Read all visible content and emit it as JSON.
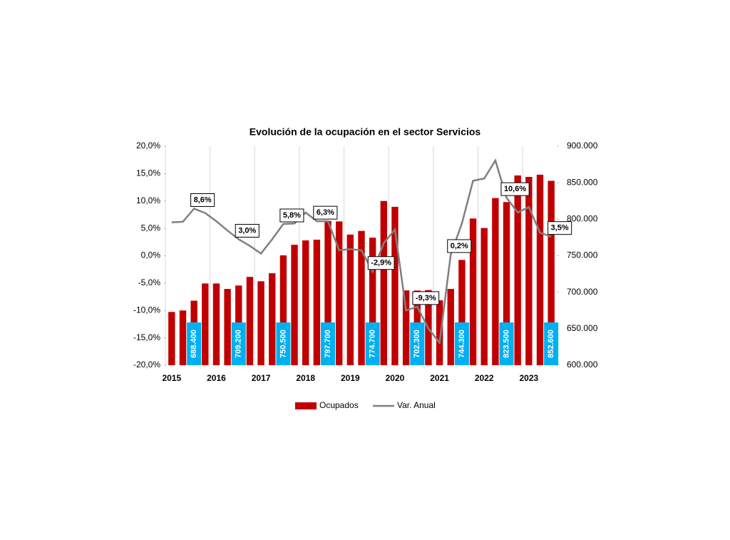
{
  "chart_data": {
    "type": "bar-line",
    "title": "Evolución de la ocupación en el sector Servicios",
    "categories": [
      "2015",
      null,
      null,
      null,
      "2016",
      null,
      null,
      null,
      "2017",
      null,
      null,
      null,
      "2018",
      null,
      null,
      null,
      "2019",
      null,
      null,
      null,
      "2020",
      null,
      null,
      null,
      "2021",
      null,
      null,
      null,
      "2022",
      null,
      null,
      null,
      "2023",
      null,
      null
    ],
    "series": [
      {
        "name": "Ocupados",
        "type": "bar",
        "axis": "y2",
        "color": "#c00000",
        "values": [
          673000,
          675000,
          688400,
          712000,
          712000,
          704500,
          709200,
          721000,
          715000,
          726000,
          750500,
          765000,
          771000,
          772000,
          797700,
          797000,
          779000,
          784000,
          774700,
          825000,
          817000,
          702500,
          702300,
          703000,
          689000,
          704500,
          744300,
          801000,
          788000,
          829000,
          823500,
          860000,
          858000,
          861000,
          852600
        ],
        "value_labels": [
          null,
          null,
          "688.400",
          null,
          null,
          null,
          "709.200",
          null,
          null,
          null,
          "750.500",
          null,
          null,
          null,
          "797.700",
          null,
          null,
          null,
          "774.700",
          null,
          null,
          null,
          "702.300",
          null,
          null,
          null,
          "744.300",
          null,
          null,
          null,
          "823.500",
          null,
          null,
          null,
          "852.600"
        ]
      },
      {
        "name": "Var. Anual",
        "type": "line",
        "axis": "y",
        "color": "#808080",
        "values": [
          6.1,
          6.2,
          8.6,
          7.8,
          6.3,
          4.6,
          3.0,
          1.8,
          0.4,
          3.0,
          5.8,
          5.9,
          7.9,
          6.3,
          6.3,
          1.0,
          1.2,
          1.0,
          -2.9,
          2.3,
          4.8,
          -10.0,
          -9.3,
          -13.3,
          -15.9,
          0.2,
          5.9,
          13.7,
          14.1,
          17.4,
          10.6,
          7.9,
          8.9,
          4.2,
          3.5
        ],
        "value_labels": [
          null,
          null,
          "8,6%",
          null,
          null,
          null,
          "3,0%",
          null,
          null,
          null,
          "5,8%",
          null,
          null,
          "6,3%",
          null,
          null,
          null,
          null,
          "-2,9%",
          null,
          null,
          null,
          "-9,3%",
          null,
          null,
          "0,2%",
          null,
          null,
          null,
          null,
          "10,6%",
          null,
          null,
          null,
          "3,5%"
        ]
      }
    ],
    "ylim": [
      -20,
      20
    ],
    "yticks": [
      {
        "value": -20,
        "label": "-20,0%"
      },
      {
        "value": -15,
        "label": "-15,0%"
      },
      {
        "value": -10,
        "label": "-10,0%"
      },
      {
        "value": -5,
        "label": "-5,0%"
      },
      {
        "value": 0,
        "label": "0,0%"
      },
      {
        "value": 5,
        "label": "5,0%"
      },
      {
        "value": 10,
        "label": "10,0%"
      },
      {
        "value": 15,
        "label": "15,0%"
      },
      {
        "value": 20,
        "label": "20,0%"
      }
    ],
    "y2lim": [
      600000,
      900000
    ],
    "y2ticks": [
      {
        "value": 600000,
        "label": "600.000"
      },
      {
        "value": 650000,
        "label": "650.000"
      },
      {
        "value": 700000,
        "label": "700.000"
      },
      {
        "value": 750000,
        "label": "750.000"
      },
      {
        "value": 800000,
        "label": "800.000"
      },
      {
        "value": 850000,
        "label": "850.000"
      },
      {
        "value": 900000,
        "label": "900.000"
      }
    ],
    "grid": "x-major",
    "legend": "bottom"
  }
}
